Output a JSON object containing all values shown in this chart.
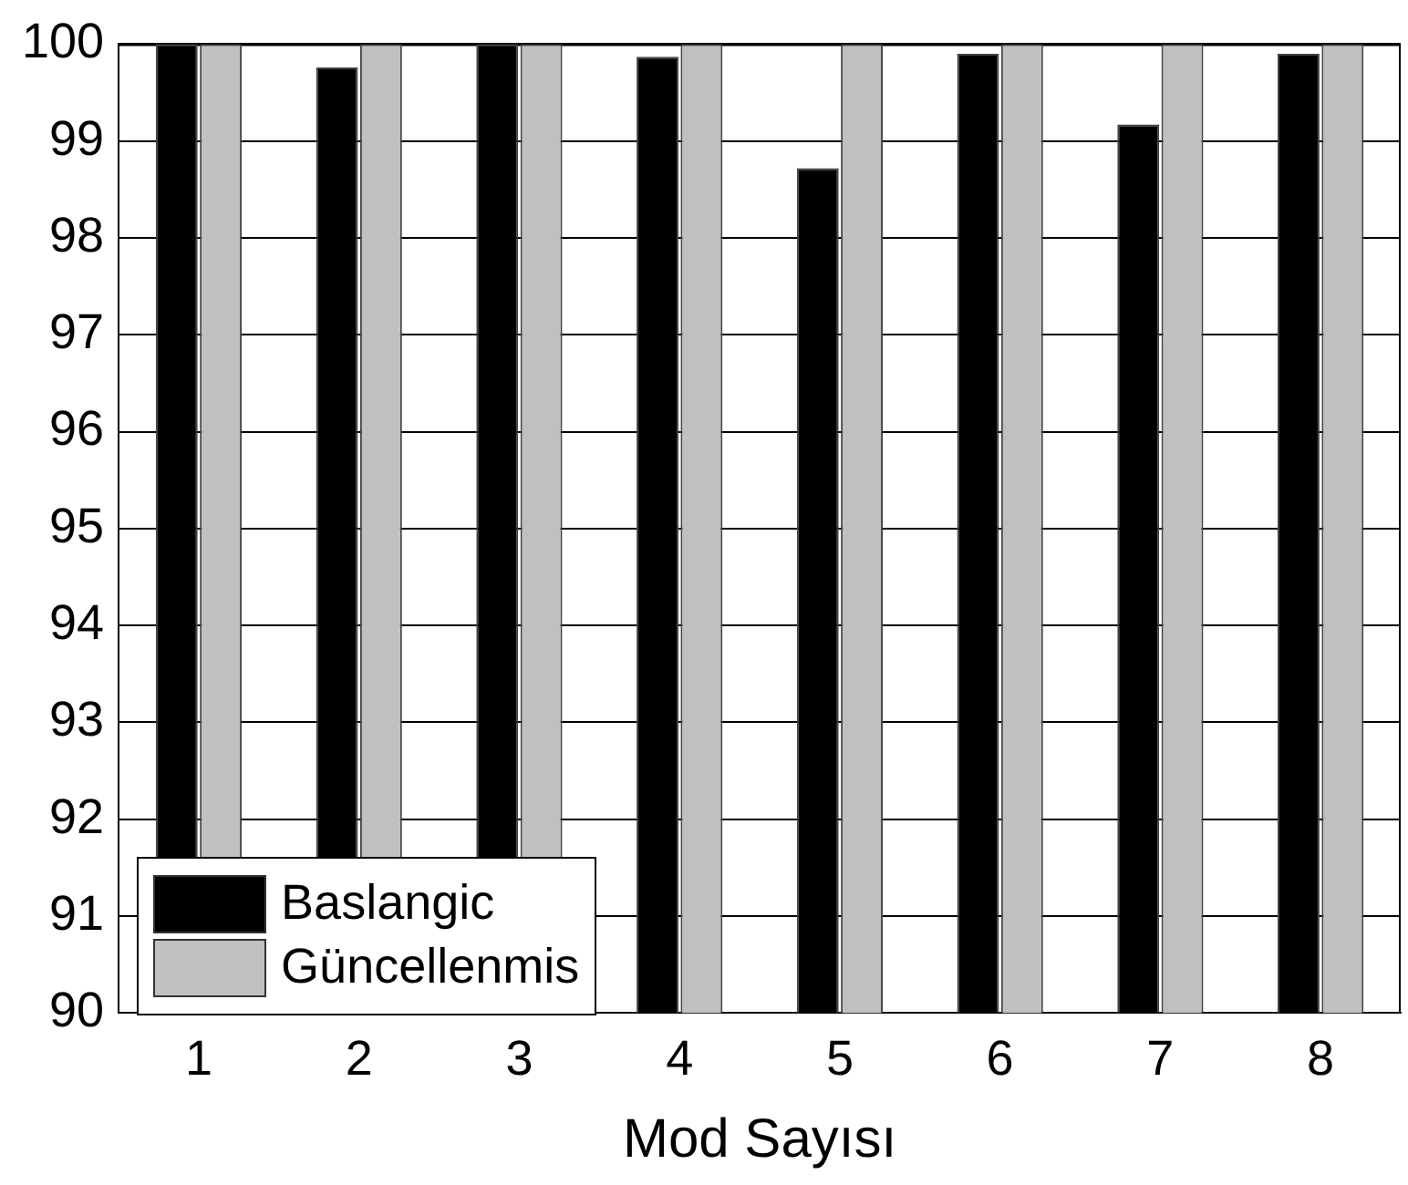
{
  "chart_data": {
    "type": "bar",
    "xlabel": "Mod Sayısı",
    "categories": [
      "1",
      "2",
      "3",
      "4",
      "5",
      "6",
      "7",
      "8"
    ],
    "series": [
      {
        "name": "Baslangic",
        "color": "#000000",
        "values": [
          100,
          99.76,
          100,
          99.87,
          98.72,
          99.9,
          99.17,
          99.9
        ]
      },
      {
        "name": "Güncellenmis",
        "color": "#c0c0c0",
        "values": [
          100,
          100,
          100,
          100,
          100,
          100,
          100,
          100
        ]
      }
    ],
    "ylim": [
      90,
      100
    ],
    "yticks": [
      90,
      91,
      92,
      93,
      94,
      95,
      96,
      97,
      98,
      99,
      100
    ],
    "grid": "y",
    "legend": "bottom left"
  }
}
